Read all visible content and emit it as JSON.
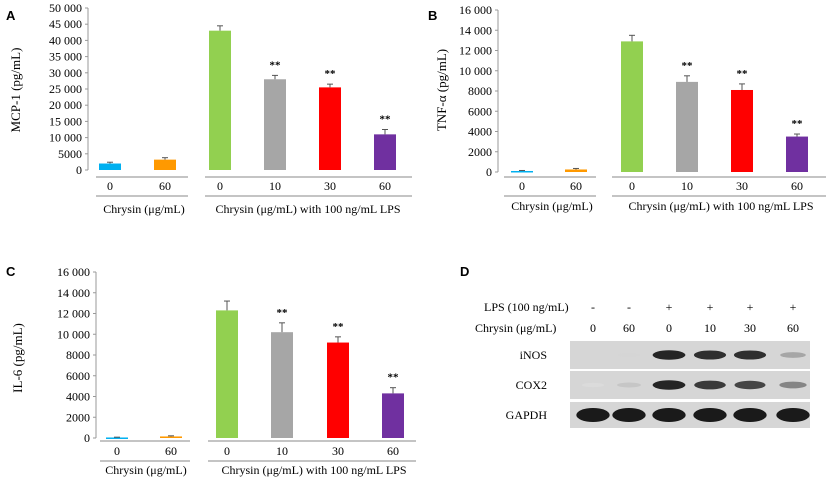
{
  "chart_data": [
    {
      "panel": "A",
      "type": "bar",
      "ylabel": "MCP-1 (pg/mL)",
      "ylim": [
        0,
        50000
      ],
      "yticks": [
        "0",
        "5000",
        "10 000",
        "15 000",
        "20 000",
        "25 000",
        "30 000",
        "35 000",
        "40 000",
        "45 000",
        "50 000"
      ],
      "ytick_values": [
        0,
        5000,
        10000,
        15000,
        20000,
        25000,
        30000,
        35000,
        40000,
        45000,
        50000
      ],
      "categories": [
        "0",
        "60",
        "0",
        "10",
        "30",
        "60"
      ],
      "values": [
        2000,
        3200,
        43000,
        28000,
        25500,
        11000
      ],
      "errors": [
        400,
        600,
        1500,
        1200,
        1000,
        1500
      ],
      "colors": [
        "#00b0f0",
        "#ff9900",
        "#92d050",
        "#a6a6a6",
        "#ff0000",
        "#7030a0"
      ],
      "significance": [
        "",
        "",
        "",
        "**",
        "**",
        "**"
      ],
      "groups": [
        {
          "label": "Chrysin (μg/mL)",
          "indices": [
            0,
            1
          ]
        },
        {
          "label": "Chrysin (μg/mL) with 100 ng/mL LPS",
          "indices": [
            2,
            3,
            4,
            5
          ]
        }
      ]
    },
    {
      "panel": "B",
      "type": "bar",
      "ylabel": "TNF-α (pg/mL)",
      "ylim": [
        0,
        16000
      ],
      "yticks": [
        "0",
        "2000",
        "4000",
        "6000",
        "8000",
        "10 000",
        "12 000",
        "14 000",
        "16 000"
      ],
      "ytick_values": [
        0,
        2000,
        4000,
        6000,
        8000,
        10000,
        12000,
        14000,
        16000
      ],
      "categories": [
        "0",
        "60",
        "0",
        "10",
        "30",
        "60"
      ],
      "values": [
        100,
        250,
        12900,
        8900,
        8100,
        3500
      ],
      "errors": [
        50,
        100,
        600,
        600,
        600,
        250
      ],
      "colors": [
        "#00b0f0",
        "#ff9900",
        "#92d050",
        "#a6a6a6",
        "#ff0000",
        "#7030a0"
      ],
      "significance": [
        "",
        "",
        "",
        "**",
        "**",
        "**"
      ],
      "groups": [
        {
          "label": "Chrysin (μg/mL)",
          "indices": [
            0,
            1
          ]
        },
        {
          "label": "Chrysin (μg/mL) with 100 ng/mL LPS",
          "indices": [
            2,
            3,
            4,
            5
          ]
        }
      ]
    },
    {
      "panel": "C",
      "type": "bar",
      "ylabel": "IL-6 (pg/mL)",
      "ylim": [
        0,
        16000
      ],
      "yticks": [
        "0",
        "2000",
        "4000",
        "6000",
        "8000",
        "10 000",
        "12 000",
        "14 000",
        "16 000"
      ],
      "ytick_values": [
        0,
        2000,
        4000,
        6000,
        8000,
        10000,
        12000,
        14000,
        16000
      ],
      "categories": [
        "0",
        "60",
        "0",
        "10",
        "30",
        "60"
      ],
      "values": [
        50,
        150,
        12300,
        10200,
        9200,
        4300
      ],
      "errors": [
        30,
        60,
        900,
        900,
        550,
        550
      ],
      "colors": [
        "#00b0f0",
        "#ff9900",
        "#92d050",
        "#a6a6a6",
        "#ff0000",
        "#7030a0"
      ],
      "significance": [
        "",
        "",
        "",
        "**",
        "**",
        "**"
      ],
      "groups": [
        {
          "label": "Chrysin (μg/mL)",
          "indices": [
            0,
            1
          ]
        },
        {
          "label": "Chrysin (μg/mL) with 100 ng/mL LPS",
          "indices": [
            2,
            3,
            4,
            5
          ]
        }
      ]
    }
  ],
  "panel_letters": {
    "a": "A",
    "b": "B",
    "c": "C",
    "d": "D"
  },
  "western_blot": {
    "lps_label": "LPS (100 ng/mL)",
    "lps_values": [
      "-",
      "-",
      "+",
      "+",
      "+",
      "+"
    ],
    "chrysin_label": "Chrysin (μg/mL)",
    "chrysin_values": [
      "0",
      "60",
      "0",
      "10",
      "30",
      "60"
    ],
    "rows": [
      {
        "label": "iNOS",
        "intensity": [
          0.0,
          0.08,
          0.9,
          0.85,
          0.85,
          0.3
        ]
      },
      {
        "label": "COX2",
        "intensity": [
          0.05,
          0.15,
          0.9,
          0.8,
          0.75,
          0.45
        ]
      },
      {
        "label": "GAPDH",
        "intensity": [
          0.95,
          0.95,
          0.95,
          0.95,
          0.95,
          0.95
        ]
      }
    ]
  }
}
